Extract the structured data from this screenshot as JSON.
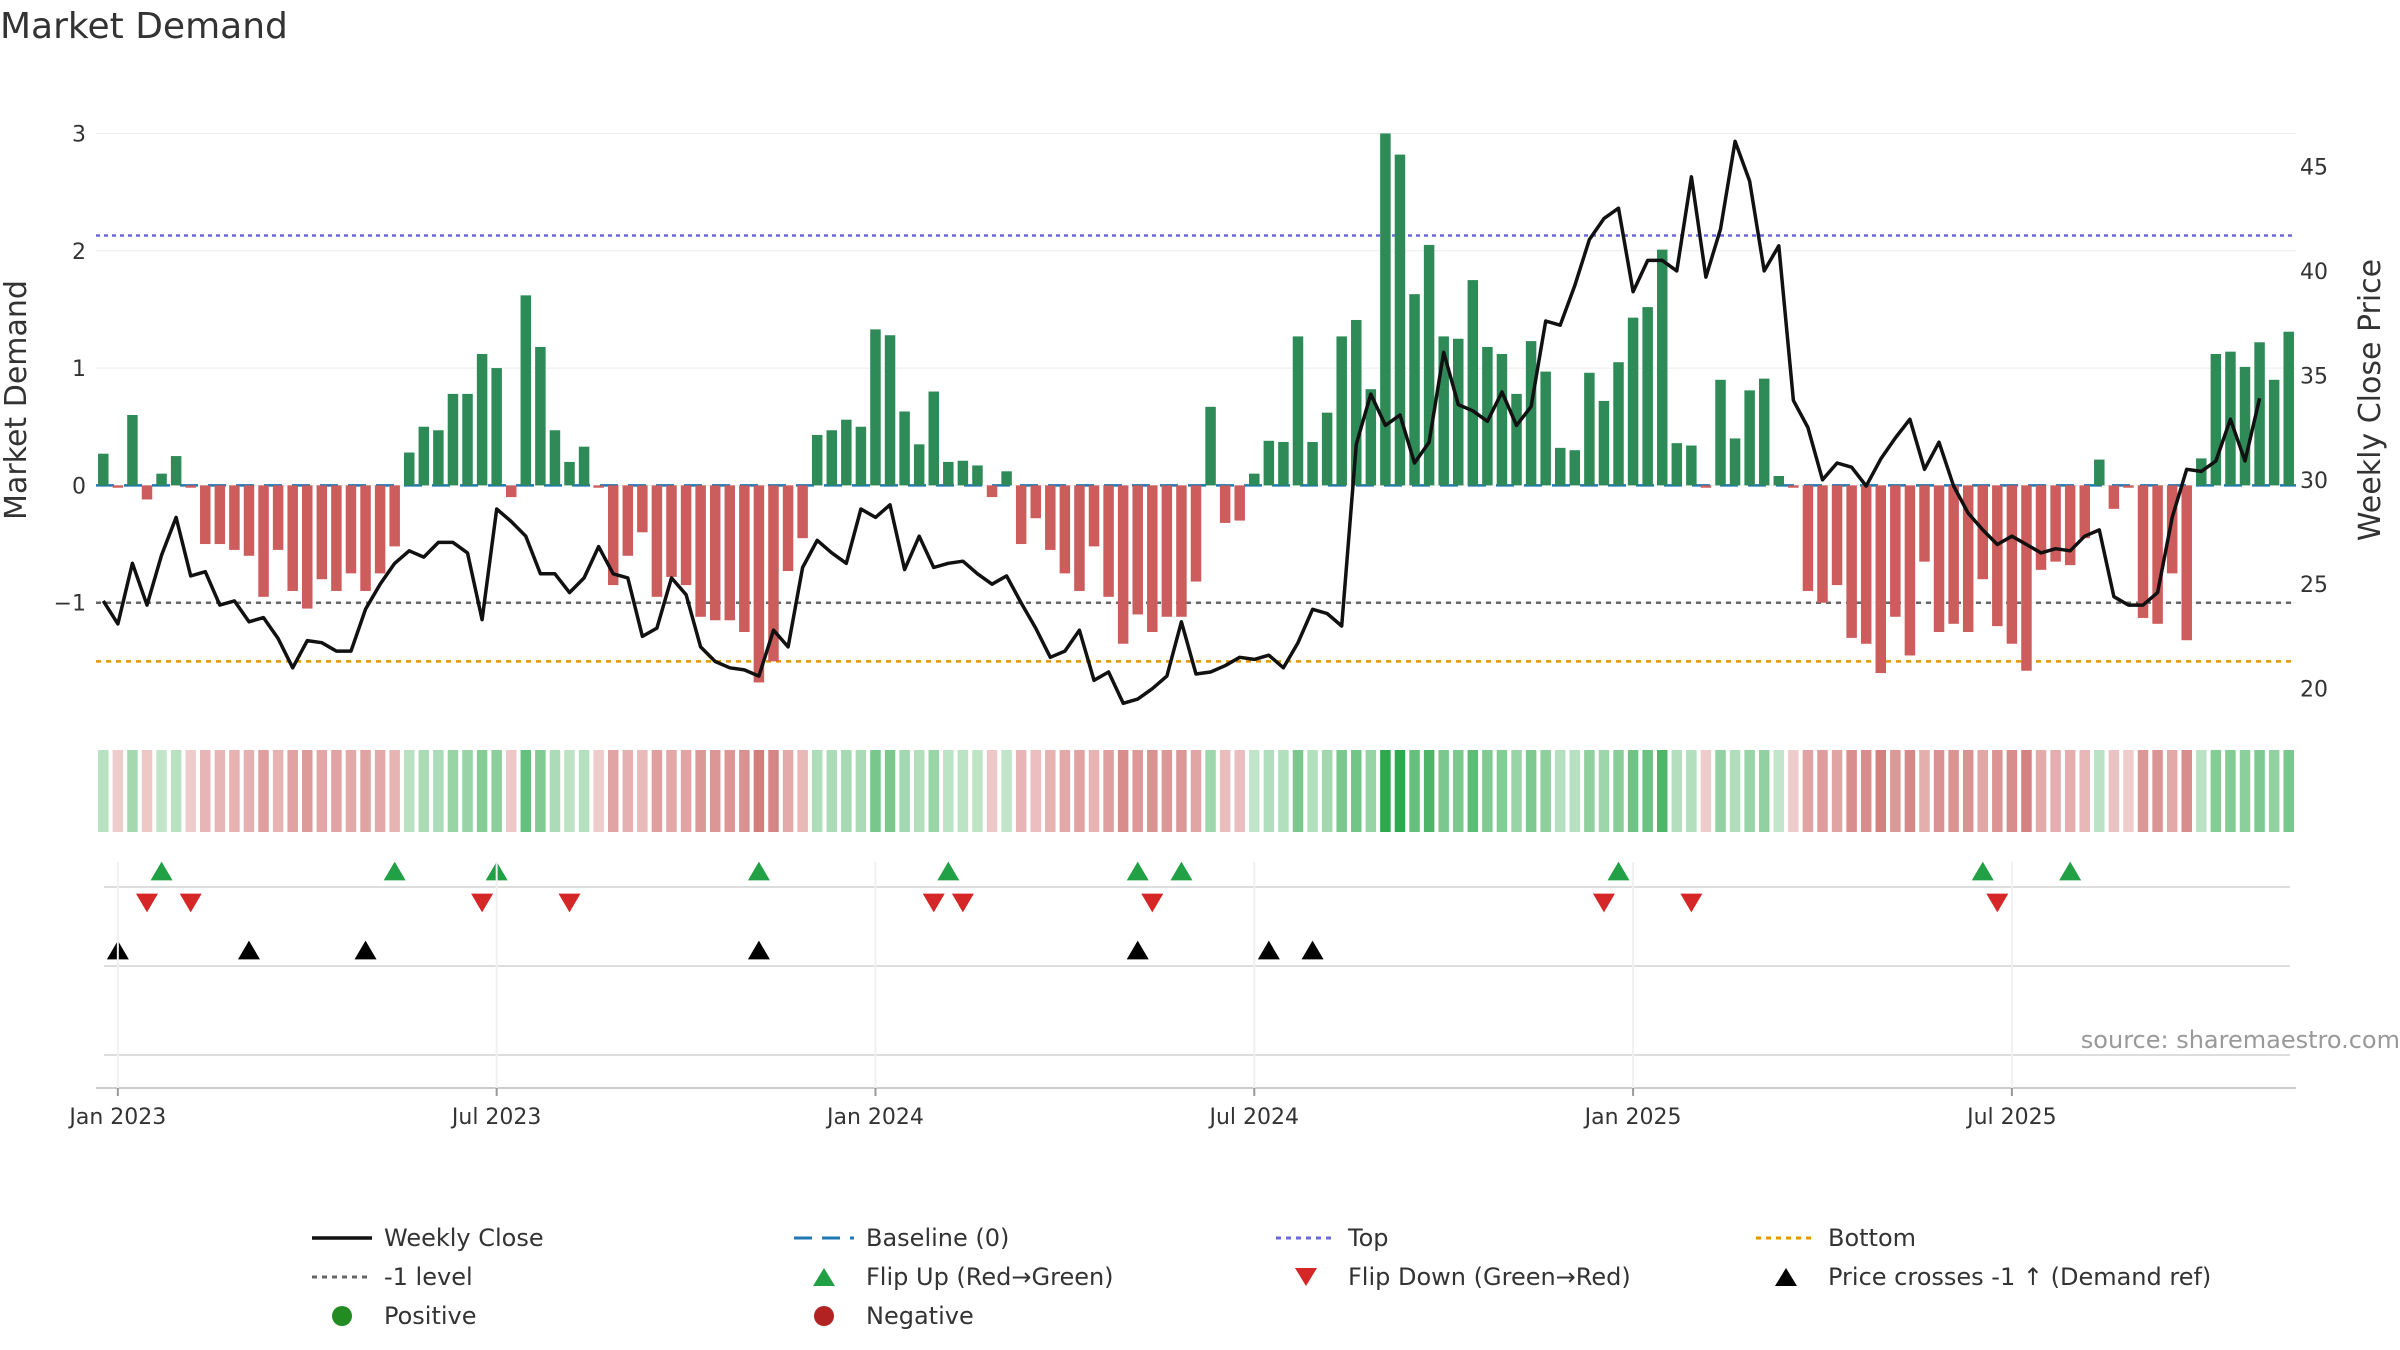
{
  "chart_data": {
    "type": "bar",
    "title": "Market Demand",
    "ylabel_left": "Market Demand",
    "ylabel_right": "Weekly Close Price",
    "source": "source: sharemaestro.com",
    "y_left": {
      "min": -2.0,
      "max": 3.2,
      "ticks": [
        3,
        2,
        1,
        0,
        -1
      ]
    },
    "y_right": {
      "min": 18.5,
      "max": 47.7,
      "ticks": [
        45,
        40,
        35,
        30,
        25,
        20
      ]
    },
    "x_ticks": [
      {
        "label": "Jan 2023",
        "week": 1
      },
      {
        "label": "Jul 2023",
        "week": 27
      },
      {
        "label": "Jan 2024",
        "week": 53
      },
      {
        "label": "Jul 2024",
        "week": 79
      },
      {
        "label": "Jan 2025",
        "week": 105
      },
      {
        "label": "Jul 2025",
        "week": 131
      }
    ],
    "reference_lines": {
      "top": 2.13,
      "bottom": -1.5,
      "minus_one_level": -1.0,
      "baseline": 0
    },
    "colors": {
      "positive": "#2e8b57",
      "negative": "#cd5c5c",
      "close": "#111111",
      "top": "#6a6ad8",
      "bottom": "#e69500",
      "level": "#666666",
      "baseline": "#1f77b4",
      "flip_up": "#22a045",
      "flip_down": "#d62728",
      "cross": "#000000",
      "legend_positive": "#228b22",
      "legend_negative": "#b22222"
    },
    "demand": [
      0.27,
      -0.02,
      0.6,
      -0.12,
      0.1,
      0.25,
      -0.02,
      -0.5,
      -0.5,
      -0.55,
      -0.6,
      -0.95,
      -0.55,
      -0.9,
      -1.05,
      -0.8,
      -0.9,
      -0.75,
      -0.9,
      -0.75,
      -0.52,
      0.28,
      0.5,
      0.47,
      0.78,
      0.78,
      1.12,
      1.0,
      -0.1,
      1.62,
      1.18,
      0.47,
      0.2,
      0.33,
      -0.02,
      -0.85,
      -0.6,
      -0.4,
      -0.95,
      -0.78,
      -0.85,
      -1.12,
      -1.15,
      -1.15,
      -1.25,
      -1.68,
      -1.5,
      -0.73,
      -0.45,
      0.43,
      0.47,
      0.56,
      0.5,
      1.33,
      1.28,
      0.63,
      0.35,
      0.8,
      0.2,
      0.21,
      0.17,
      -0.1,
      0.12,
      -0.5,
      -0.28,
      -0.55,
      -0.75,
      -0.9,
      -0.52,
      -0.95,
      -1.35,
      -1.1,
      -1.25,
      -1.12,
      -1.12,
      -0.82,
      0.67,
      -0.32,
      -0.3,
      0.1,
      0.38,
      0.37,
      1.27,
      0.37,
      0.62,
      1.27,
      1.41,
      0.82,
      3.0,
      2.82,
      1.63,
      2.05,
      1.27,
      1.25,
      1.75,
      1.18,
      1.12,
      0.78,
      1.23,
      0.97,
      0.32,
      0.3,
      0.96,
      0.72,
      1.05,
      1.43,
      1.52,
      2.01,
      0.36,
      0.34,
      -0.02,
      0.9,
      0.4,
      0.81,
      0.91,
      0.08,
      -0.02,
      -0.9,
      -1.0,
      -0.85,
      -1.3,
      -1.35,
      -1.6,
      -1.12,
      -1.45,
      -0.65,
      -1.25,
      -1.18,
      -1.25,
      -0.8,
      -1.2,
      -1.35,
      -1.58,
      -0.72,
      -0.65,
      -0.68,
      -0.45,
      0.22,
      -0.2,
      -0.02,
      -1.13,
      -1.18,
      -0.75,
      -1.32,
      0.23,
      1.12,
      1.14,
      1.01,
      1.22,
      0.9,
      1.31
    ],
    "weekly_close": [
      24.2,
      23.1,
      26.0,
      24.0,
      26.4,
      28.2,
      25.4,
      25.6,
      24.0,
      24.2,
      23.2,
      23.4,
      22.4,
      21.0,
      22.3,
      22.2,
      21.8,
      21.8,
      23.8,
      25.0,
      26.0,
      26.6,
      26.3,
      27.0,
      27.0,
      26.5,
      23.3,
      28.6,
      28.0,
      27.3,
      25.5,
      25.5,
      24.6,
      25.3,
      26.8,
      25.5,
      25.3,
      22.5,
      22.9,
      25.3,
      24.5,
      22.0,
      21.3,
      21.0,
      20.9,
      20.6,
      22.8,
      22.0,
      25.8,
      27.1,
      26.5,
      26.0,
      28.6,
      28.2,
      28.8,
      25.7,
      27.3,
      25.8,
      26.0,
      26.1,
      25.5,
      25.0,
      25.4,
      24.1,
      22.9,
      21.5,
      21.8,
      22.8,
      20.4,
      20.8,
      19.3,
      19.5,
      20.0,
      20.6,
      23.2,
      20.7,
      20.8,
      21.1,
      21.5,
      21.4,
      21.6,
      21.0,
      22.2,
      23.8,
      23.6,
      23.0,
      31.7,
      34.1,
      32.6,
      33.1,
      30.8,
      31.8,
      36.1,
      33.6,
      33.3,
      32.8,
      34.2,
      32.6,
      33.5,
      37.6,
      37.4,
      39.3,
      41.5,
      42.5,
      43.0,
      39.0,
      40.5,
      40.5,
      40.0,
      44.5,
      39.7,
      42.0,
      46.2,
      44.3,
      40.0,
      41.2,
      33.8,
      32.5,
      30.0,
      30.8,
      30.6,
      29.7,
      31.0,
      32.0,
      32.9,
      30.5,
      31.8,
      29.7,
      28.4,
      27.6,
      26.9,
      27.3,
      26.9,
      26.5,
      26.7,
      26.6,
      27.3,
      27.6,
      24.4,
      24.0,
      24.0,
      24.6,
      28.2,
      30.5,
      30.4,
      30.9,
      32.9,
      30.9,
      33.9
    ],
    "flip_up_weeks": [
      4,
      20,
      27,
      45,
      58,
      71,
      74,
      104,
      129,
      135
    ],
    "flip_down_weeks": [
      3,
      6,
      26,
      32,
      57,
      59,
      72,
      103,
      109,
      130
    ],
    "price_cross_weeks": [
      1,
      10,
      18,
      45,
      71,
      80,
      83
    ],
    "legend": [
      {
        "label": "Weekly Close",
        "marker": "line-solid",
        "color": "#111111"
      },
      {
        "label": "Baseline (0)",
        "marker": "line-dash",
        "color": "#1f77b4"
      },
      {
        "label": "Top",
        "marker": "line-dot",
        "color": "#6a6ad8"
      },
      {
        "label": "Bottom",
        "marker": "line-dot",
        "color": "#e69500"
      },
      {
        "label": "-1 level",
        "marker": "line-dot",
        "color": "#666666"
      },
      {
        "label": "Flip Up (Red→Green)",
        "marker": "triangle-up",
        "color": "#22a045"
      },
      {
        "label": "Flip Down (Green→Red)",
        "marker": "triangle-down",
        "color": "#d62728"
      },
      {
        "label": "Price crosses -1 ↑ (Demand ref)",
        "marker": "triangle-up",
        "color": "#000000"
      },
      {
        "label": "Positive",
        "marker": "circle",
        "color": "#228b22"
      },
      {
        "label": "Negative",
        "marker": "circle",
        "color": "#b22222"
      }
    ]
  }
}
